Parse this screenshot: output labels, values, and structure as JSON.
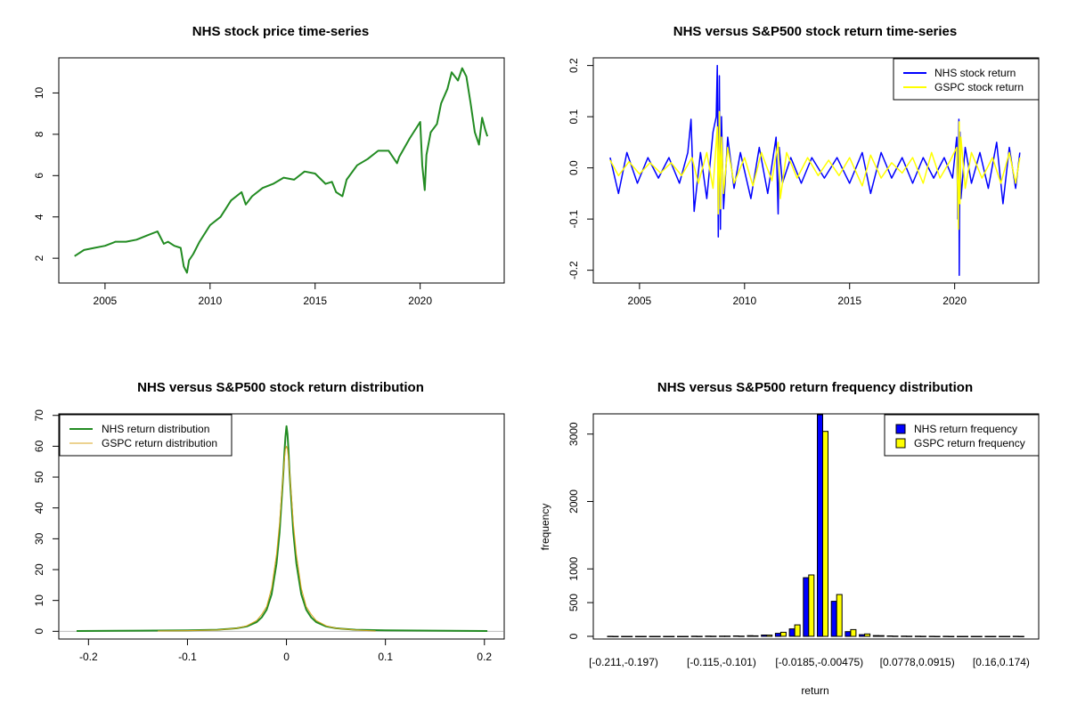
{
  "colors": {
    "nhs_price": "#228B22",
    "nhs_return": "#0000FF",
    "gspc_return": "#FFFF00",
    "nhs_density": "#228B22",
    "gspc_density": "#DAA520",
    "zero_line": "#BEBEBE"
  },
  "chart_data": [
    {
      "id": "price",
      "type": "line",
      "title": "NHS stock price time-series",
      "xlabel": "",
      "ylabel": "",
      "x_ticks": [
        2005,
        2010,
        2015,
        2020
      ],
      "y_ticks": [
        2,
        4,
        6,
        8,
        10
      ],
      "xlim": [
        2002.8,
        2024.0
      ],
      "ylim": [
        0.8,
        11.7
      ],
      "series": [
        {
          "x": [
            2003.55,
            2004.0,
            2004.5,
            2005.0,
            2005.5,
            2006.0,
            2006.5,
            2007.0,
            2007.5,
            2007.8,
            2008.0,
            2008.3,
            2008.6,
            2008.75,
            2008.9,
            2009.0,
            2009.2,
            2009.5,
            2010.0,
            2010.5,
            2011.0,
            2011.5,
            2011.7,
            2012.0,
            2012.5,
            2013.0,
            2013.5,
            2014.0,
            2014.5,
            2015.0,
            2015.5,
            2015.8,
            2016.0,
            2016.3,
            2016.5,
            2017.0,
            2017.5,
            2018.0,
            2018.5,
            2018.9,
            2019.0,
            2019.5,
            2020.0,
            2020.1,
            2020.22,
            2020.3,
            2020.5,
            2020.8,
            2021.0,
            2021.3,
            2021.5,
            2021.8,
            2022.0,
            2022.2,
            2022.4,
            2022.6,
            2022.8,
            2022.95,
            2023.1,
            2023.2
          ],
          "y": [
            2.1,
            2.4,
            2.5,
            2.6,
            2.8,
            2.8,
            2.9,
            3.1,
            3.3,
            2.7,
            2.8,
            2.6,
            2.5,
            1.6,
            1.3,
            1.9,
            2.2,
            2.8,
            3.6,
            4.0,
            4.8,
            5.2,
            4.6,
            5.0,
            5.4,
            5.6,
            5.9,
            5.8,
            6.2,
            6.1,
            5.6,
            5.7,
            5.2,
            5.0,
            5.8,
            6.5,
            6.8,
            7.2,
            7.2,
            6.6,
            6.9,
            7.8,
            8.6,
            6.5,
            5.3,
            7.0,
            8.1,
            8.5,
            9.5,
            10.2,
            11.0,
            10.6,
            11.2,
            10.8,
            9.5,
            8.1,
            7.5,
            8.8,
            8.2,
            7.9
          ]
        }
      ]
    },
    {
      "id": "returns",
      "type": "line",
      "title": "NHS versus S&P500 stock return time-series",
      "xlabel": "",
      "ylabel": "",
      "x_ticks": [
        2005,
        2010,
        2015,
        2020
      ],
      "y_ticks": [
        -0.2,
        -0.1,
        0.0,
        0.1,
        0.2
      ],
      "y_tick_labels": [
        "-0.2",
        "-0.1",
        "0.0",
        "0.1",
        "0.2"
      ],
      "xlim": [
        2002.8,
        2024.0
      ],
      "ylim": [
        -0.225,
        0.215
      ],
      "legend_position": "top-right",
      "series": [
        {
          "name": "NHS stock return",
          "x": [
            2003.6,
            2004.0,
            2004.4,
            2004.9,
            2005.4,
            2005.9,
            2006.4,
            2006.9,
            2007.3,
            2007.45,
            2007.6,
            2007.9,
            2008.2,
            2008.5,
            2008.65,
            2008.7,
            2008.75,
            2008.8,
            2008.85,
            2008.9,
            2009.0,
            2009.2,
            2009.5,
            2009.8,
            2010.3,
            2010.7,
            2011.1,
            2011.5,
            2011.6,
            2011.65,
            2011.8,
            2012.2,
            2012.7,
            2013.2,
            2013.8,
            2014.4,
            2015.0,
            2015.6,
            2016.0,
            2016.5,
            2017.0,
            2017.5,
            2018.0,
            2018.5,
            2019.0,
            2019.5,
            2019.9,
            2020.1,
            2020.15,
            2020.2,
            2020.22,
            2020.25,
            2020.3,
            2020.5,
            2020.8,
            2021.2,
            2021.6,
            2022.0,
            2022.3,
            2022.6,
            2022.9,
            2023.1
          ],
          "y": [
            0.02,
            -0.05,
            0.03,
            -0.03,
            0.02,
            -0.02,
            0.02,
            -0.03,
            0.03,
            0.095,
            -0.085,
            0.03,
            -0.06,
            0.07,
            0.1,
            0.2,
            -0.135,
            0.18,
            -0.12,
            0.1,
            -0.08,
            0.06,
            -0.04,
            0.03,
            -0.06,
            0.04,
            -0.05,
            0.06,
            -0.09,
            0.04,
            -0.03,
            0.02,
            -0.03,
            0.02,
            -0.02,
            0.02,
            -0.03,
            0.03,
            -0.05,
            0.03,
            -0.02,
            0.02,
            -0.03,
            0.02,
            -0.02,
            0.02,
            -0.02,
            0.06,
            -0.1,
            0.095,
            -0.21,
            0.07,
            -0.06,
            0.04,
            -0.03,
            0.03,
            -0.04,
            0.05,
            -0.07,
            0.04,
            -0.04,
            0.03
          ]
        },
        {
          "name": "GSPC stock return",
          "x": [
            2003.6,
            2004.0,
            2004.5,
            2005.0,
            2005.5,
            2006.0,
            2006.5,
            2007.0,
            2007.5,
            2007.8,
            2008.2,
            2008.5,
            2008.7,
            2008.75,
            2008.8,
            2008.85,
            2008.9,
            2009.0,
            2009.2,
            2009.5,
            2010.0,
            2010.4,
            2010.8,
            2011.3,
            2011.6,
            2011.7,
            2012.0,
            2012.5,
            2013.0,
            2013.5,
            2014.0,
            2014.5,
            2015.0,
            2015.6,
            2016.0,
            2016.5,
            2017.0,
            2017.5,
            2018.0,
            2018.5,
            2018.9,
            2019.3,
            2019.8,
            2020.1,
            2020.18,
            2020.22,
            2020.25,
            2020.3,
            2020.5,
            2020.8,
            2021.3,
            2021.8,
            2022.2,
            2022.6,
            2022.9,
            2023.1
          ],
          "y": [
            0.015,
            -0.015,
            0.012,
            -0.012,
            0.01,
            -0.01,
            0.01,
            -0.015,
            0.02,
            -0.03,
            0.03,
            -0.04,
            0.08,
            -0.09,
            0.11,
            -0.08,
            0.06,
            -0.05,
            0.04,
            -0.03,
            0.02,
            -0.035,
            0.03,
            -0.025,
            0.05,
            -0.06,
            0.03,
            -0.02,
            0.02,
            -0.015,
            0.015,
            -0.015,
            0.02,
            -0.035,
            0.025,
            -0.02,
            0.01,
            -0.01,
            0.02,
            -0.03,
            0.03,
            -0.02,
            0.015,
            0.04,
            -0.12,
            0.09,
            -0.07,
            0.06,
            -0.04,
            0.03,
            -0.02,
            0.02,
            -0.03,
            0.03,
            -0.03,
            0.02
          ]
        }
      ]
    },
    {
      "id": "density",
      "type": "line",
      "title": "NHS versus S&P500 stock return distribution",
      "xlabel": "",
      "ylabel": "",
      "x_ticks": [
        -0.2,
        -0.1,
        0.0,
        0.1,
        0.2
      ],
      "y_ticks": [
        0,
        10,
        20,
        30,
        40,
        50,
        60,
        70
      ],
      "xlim": [
        -0.23,
        0.22
      ],
      "ylim": [
        -2.5,
        70.5
      ],
      "legend_position": "top-left",
      "series": [
        {
          "name": "NHS return distribution",
          "x": [
            -0.212,
            -0.15,
            -0.1,
            -0.07,
            -0.05,
            -0.04,
            -0.03,
            -0.025,
            -0.02,
            -0.015,
            -0.01,
            -0.007,
            -0.005,
            -0.003,
            -0.002,
            -0.001,
            0.0,
            0.001,
            0.002,
            0.003,
            0.005,
            0.007,
            0.01,
            0.015,
            0.02,
            0.025,
            0.03,
            0.04,
            0.05,
            0.07,
            0.1,
            0.15,
            0.203
          ],
          "y": [
            0.1,
            0.2,
            0.3,
            0.5,
            1.0,
            1.6,
            3.0,
            4.5,
            7.0,
            12.0,
            22.0,
            32.0,
            42.0,
            52.0,
            58.0,
            63.0,
            66.5,
            64.0,
            59.0,
            52.0,
            42.0,
            32.0,
            22.0,
            12.0,
            7.0,
            4.5,
            3.0,
            1.6,
            1.0,
            0.5,
            0.3,
            0.2,
            0.1
          ]
        },
        {
          "name": "GSPC return distribution",
          "x": [
            -0.13,
            -0.1,
            -0.07,
            -0.05,
            -0.04,
            -0.03,
            -0.025,
            -0.02,
            -0.015,
            -0.01,
            -0.007,
            -0.005,
            -0.003,
            -0.002,
            -0.001,
            0.0,
            0.001,
            0.002,
            0.003,
            0.005,
            0.007,
            0.01,
            0.015,
            0.02,
            0.025,
            0.03,
            0.04,
            0.05,
            0.07,
            0.09
          ],
          "y": [
            0.1,
            0.2,
            0.4,
            1.0,
            1.8,
            3.5,
            5.5,
            8.0,
            14.0,
            25.0,
            35.0,
            44.0,
            52.0,
            56.0,
            59.0,
            60.0,
            59.0,
            56.0,
            52.0,
            44.0,
            35.0,
            25.0,
            14.0,
            8.0,
            5.5,
            3.5,
            1.8,
            1.0,
            0.4,
            0.1
          ]
        }
      ]
    },
    {
      "id": "frequency",
      "type": "bar",
      "title": "NHS versus S&P500 return frequency distribution",
      "xlabel": "return",
      "ylabel": "frequency",
      "y_ticks": [
        0,
        500,
        1000,
        2000,
        3000
      ],
      "ylim": [
        -40,
        3300
      ],
      "legend_position": "top-right",
      "categories": [
        "[-0.211,-0.197)",
        "[-0.197,-0.183)",
        "[-0.183,-0.17)",
        "[-0.17,-0.156)",
        "[-0.156,-0.142)",
        "[-0.142,-0.129)",
        "[-0.129,-0.115)",
        "[-0.115,-0.101)",
        "[-0.101,-0.0871)",
        "[-0.0871,-0.0734)",
        "[-0.0734,-0.0597)",
        "[-0.0597,-0.046)",
        "[-0.046,-0.0322)",
        "[-0.0322,-0.0185)",
        "[-0.0185,-0.00475)",
        "[-0.00475,0.00897)",
        "[0.00897,0.0227)",
        "[0.0227,0.0364)",
        "[0.0364,0.0501)",
        "[0.0501,0.0638)",
        "[0.0638,0.0778)",
        "[0.0778,0.0915)",
        "[0.0915,0.105)",
        "[0.105,0.119)",
        "[0.119,0.133)",
        "[0.133,0.146)",
        "[0.146,0.16)",
        "[0.16,0.174)",
        "[0.174,0.188)",
        "[0.188,0.202)"
      ],
      "visible_category_labels": [
        "[-0.211,-0.197)",
        "[-0.115,-0.101)",
        "[-0.0185,-0.00475)",
        "[0.0778,0.0915)",
        "[0.16,0.174)"
      ],
      "visible_label_indices": [
        0,
        7,
        14,
        21,
        27
      ],
      "series": [
        {
          "name": "NHS return frequency",
          "values": [
            1,
            0,
            0,
            0,
            0,
            0,
            2,
            3,
            4,
            6,
            10,
            20,
            45,
            110,
            870,
            3340,
            520,
            70,
            25,
            12,
            6,
            3,
            2,
            1,
            1,
            0,
            0,
            0,
            0,
            1
          ]
        },
        {
          "name": "GSPC return frequency",
          "values": [
            0,
            0,
            0,
            0,
            0,
            0,
            1,
            2,
            3,
            4,
            8,
            18,
            60,
            170,
            910,
            3040,
            620,
            100,
            35,
            10,
            4,
            2,
            1,
            0,
            0,
            0,
            0,
            0,
            0,
            0
          ]
        }
      ]
    }
  ]
}
